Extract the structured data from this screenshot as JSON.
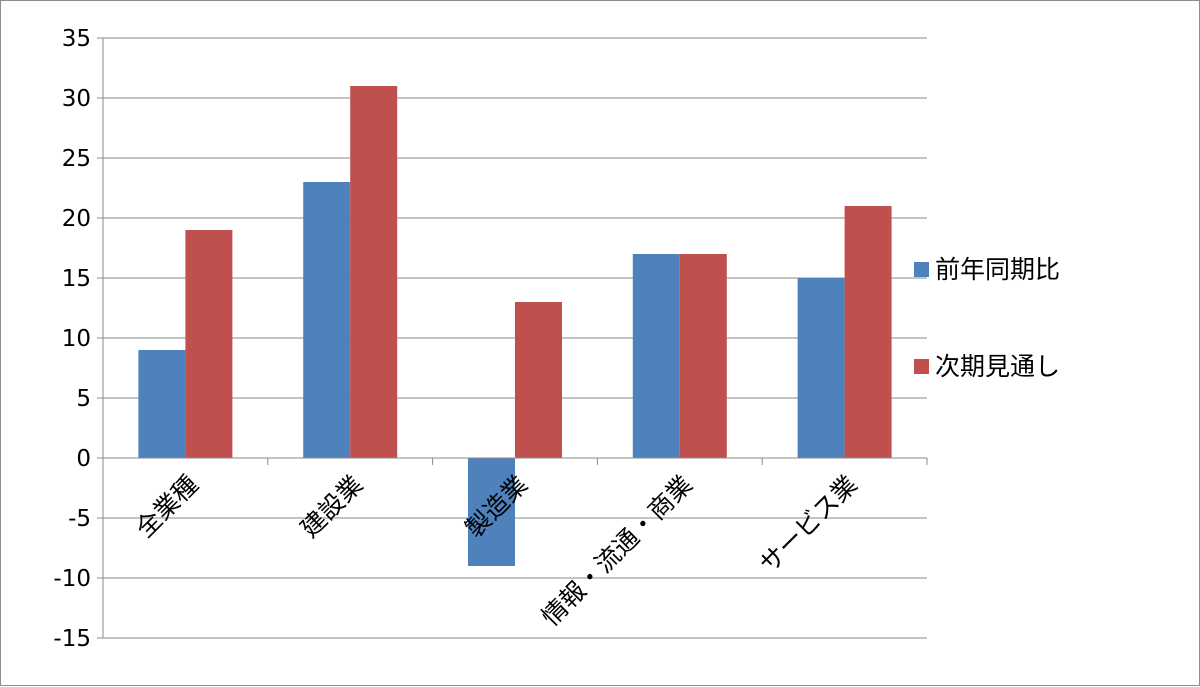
{
  "chart_data": {
    "type": "bar",
    "categories": [
      "全業種",
      "建設業",
      "製造業",
      "情報・流通・商業",
      "サービス業"
    ],
    "series": [
      {
        "name": "前年同期比",
        "color": "#4f81bd",
        "values": [
          9,
          23,
          -9,
          17,
          15
        ]
      },
      {
        "name": "次期見通し",
        "color": "#c0504d",
        "values": [
          19,
          31,
          13,
          17,
          21
        ]
      }
    ],
    "ylim": [
      -15,
      35
    ],
    "yticks": [
      35,
      30,
      25,
      20,
      15,
      10,
      5,
      0,
      -5,
      -10,
      -15
    ],
    "grid": true,
    "legend": "right"
  }
}
